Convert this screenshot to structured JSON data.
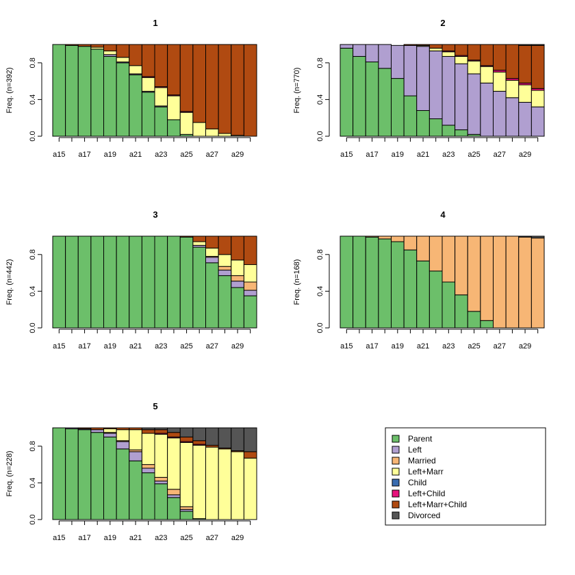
{
  "colors": {
    "Parent": "#6cbf6a",
    "Left": "#b09fd0",
    "Married": "#f7b675",
    "Left+Marr": "#ffff99",
    "Child": "#386cb0",
    "Left+Child": "#e7127c",
    "Left+Marr+Child": "#b04a11",
    "Divorced": "#555555"
  },
  "chart_data": [
    {
      "type": "bar",
      "stacked": true,
      "title": "1",
      "ylabel": "Freq. (n=392)",
      "categories": [
        "a15",
        "a16",
        "a17",
        "a18",
        "a19",
        "a20",
        "a21",
        "a22",
        "a23",
        "a24",
        "a25",
        "a26",
        "a27",
        "a28",
        "a29",
        "a30"
      ],
      "xtick_labels": [
        "a15",
        "a17",
        "a19",
        "a21",
        "a23",
        "a25",
        "a27",
        "a29"
      ],
      "ylim": [
        0,
        1
      ],
      "yticks": [
        "0.0",
        "0.4",
        "0.8"
      ],
      "series": [
        {
          "name": "Parent",
          "values": [
            1.0,
            0.99,
            0.98,
            0.95,
            0.87,
            0.8,
            0.67,
            0.48,
            0.32,
            0.18,
            0.02,
            0,
            0,
            0,
            0,
            0
          ]
        },
        {
          "name": "Left",
          "values": [
            0,
            0,
            0,
            0,
            0.02,
            0.01,
            0.01,
            0.01,
            0.01,
            0,
            0,
            0,
            0,
            0,
            0,
            0
          ]
        },
        {
          "name": "Married",
          "values": [
            0,
            0,
            0,
            0,
            0,
            0,
            0,
            0,
            0,
            0,
            0,
            0,
            0,
            0,
            0,
            0
          ]
        },
        {
          "name": "Left+Marr",
          "values": [
            0,
            0,
            0,
            0.02,
            0.04,
            0.05,
            0.09,
            0.15,
            0.2,
            0.26,
            0.24,
            0.15,
            0.08,
            0.03,
            0.01,
            0
          ]
        },
        {
          "name": "Child",
          "values": [
            0,
            0,
            0,
            0,
            0,
            0,
            0,
            0,
            0,
            0,
            0,
            0,
            0,
            0,
            0,
            0
          ]
        },
        {
          "name": "Left+Child",
          "values": [
            0,
            0,
            0,
            0,
            0,
            0,
            0,
            0.01,
            0.01,
            0.01,
            0.01,
            0,
            0,
            0,
            0,
            0
          ]
        },
        {
          "name": "Left+Marr+Child",
          "values": [
            0,
            0.01,
            0.02,
            0.03,
            0.07,
            0.14,
            0.23,
            0.35,
            0.46,
            0.55,
            0.73,
            0.85,
            0.92,
            0.97,
            0.99,
            1.0
          ]
        },
        {
          "name": "Divorced",
          "values": [
            0,
            0,
            0,
            0,
            0,
            0,
            0,
            0,
            0,
            0,
            0,
            0,
            0,
            0,
            0,
            0
          ]
        }
      ]
    },
    {
      "type": "bar",
      "stacked": true,
      "title": "2",
      "ylabel": "Freq. (n=770)",
      "categories": [
        "a15",
        "a16",
        "a17",
        "a18",
        "a19",
        "a20",
        "a21",
        "a22",
        "a23",
        "a24",
        "a25",
        "a26",
        "a27",
        "a28",
        "a29",
        "a30"
      ],
      "xtick_labels": [
        "a15",
        "a17",
        "a19",
        "a21",
        "a23",
        "a25",
        "a27",
        "a29"
      ],
      "ylim": [
        0,
        1
      ],
      "yticks": [
        "0.0",
        "0.4",
        "0.8"
      ],
      "series": [
        {
          "name": "Parent",
          "values": [
            0.96,
            0.87,
            0.81,
            0.74,
            0.63,
            0.44,
            0.28,
            0.19,
            0.12,
            0.07,
            0.02,
            0,
            0,
            0,
            0,
            0
          ]
        },
        {
          "name": "Left",
          "values": [
            0.04,
            0.13,
            0.19,
            0.26,
            0.36,
            0.55,
            0.7,
            0.74,
            0.75,
            0.72,
            0.66,
            0.58,
            0.49,
            0.42,
            0.37,
            0.32
          ]
        },
        {
          "name": "Married",
          "values": [
            0,
            0,
            0,
            0,
            0,
            0,
            0,
            0,
            0,
            0,
            0,
            0,
            0,
            0,
            0,
            0
          ]
        },
        {
          "name": "Left+Marr",
          "values": [
            0,
            0,
            0,
            0,
            0,
            0,
            0.01,
            0.03,
            0.05,
            0.08,
            0.14,
            0.18,
            0.21,
            0.19,
            0.19,
            0.18
          ]
        },
        {
          "name": "Child",
          "values": [
            0,
            0,
            0,
            0,
            0,
            0,
            0,
            0,
            0,
            0,
            0,
            0,
            0,
            0,
            0,
            0
          ]
        },
        {
          "name": "Left+Child",
          "values": [
            0,
            0,
            0,
            0,
            0,
            0,
            0,
            0,
            0.01,
            0.01,
            0.01,
            0.01,
            0.02,
            0.02,
            0.02,
            0.02
          ]
        },
        {
          "name": "Left+Marr+Child",
          "values": [
            0,
            0,
            0,
            0,
            0,
            0.01,
            0.01,
            0.04,
            0.07,
            0.12,
            0.17,
            0.23,
            0.28,
            0.37,
            0.41,
            0.47
          ]
        },
        {
          "name": "Divorced",
          "values": [
            0,
            0,
            0,
            0,
            0,
            0,
            0,
            0,
            0,
            0,
            0,
            0,
            0,
            0,
            0.01,
            0.01
          ]
        }
      ]
    },
    {
      "type": "bar",
      "stacked": true,
      "title": "3",
      "ylabel": "Freq. (n=442)",
      "categories": [
        "a15",
        "a16",
        "a17",
        "a18",
        "a19",
        "a20",
        "a21",
        "a22",
        "a23",
        "a24",
        "a25",
        "a26",
        "a27",
        "a28",
        "a29",
        "a30"
      ],
      "xtick_labels": [
        "a15",
        "a17",
        "a19",
        "a21",
        "a23",
        "a25",
        "a27",
        "a29"
      ],
      "ylim": [
        0,
        1
      ],
      "yticks": [
        "0.0",
        "0.4",
        "0.8"
      ],
      "series": [
        {
          "name": "Parent",
          "values": [
            1,
            1,
            1,
            1,
            1,
            1,
            1,
            1,
            1,
            1,
            0.99,
            0.88,
            0.71,
            0.57,
            0.44,
            0.35
          ]
        },
        {
          "name": "Left",
          "values": [
            0,
            0,
            0,
            0,
            0,
            0,
            0,
            0,
            0,
            0,
            0,
            0.02,
            0.06,
            0.06,
            0.07,
            0.06
          ]
        },
        {
          "name": "Married",
          "values": [
            0,
            0,
            0,
            0,
            0,
            0,
            0,
            0,
            0,
            0,
            0,
            0,
            0.01,
            0.04,
            0.06,
            0.09
          ]
        },
        {
          "name": "Left+Marr",
          "values": [
            0,
            0,
            0,
            0,
            0,
            0,
            0,
            0,
            0,
            0,
            0,
            0.04,
            0.09,
            0.13,
            0.17,
            0.19
          ]
        },
        {
          "name": "Child",
          "values": [
            0,
            0,
            0,
            0,
            0,
            0,
            0,
            0,
            0,
            0,
            0,
            0,
            0,
            0,
            0,
            0
          ]
        },
        {
          "name": "Left+Child",
          "values": [
            0,
            0,
            0,
            0,
            0,
            0,
            0,
            0,
            0,
            0,
            0,
            0,
            0,
            0,
            0,
            0
          ]
        },
        {
          "name": "Left+Marr+Child",
          "values": [
            0,
            0,
            0,
            0,
            0,
            0,
            0,
            0,
            0,
            0,
            0.01,
            0.06,
            0.13,
            0.2,
            0.26,
            0.31
          ]
        },
        {
          "name": "Divorced",
          "values": [
            0,
            0,
            0,
            0,
            0,
            0,
            0,
            0,
            0,
            0,
            0,
            0,
            0,
            0,
            0,
            0
          ]
        }
      ]
    },
    {
      "type": "bar",
      "stacked": true,
      "title": "4",
      "ylabel": "Freq. (n=168)",
      "categories": [
        "a15",
        "a16",
        "a17",
        "a18",
        "a19",
        "a20",
        "a21",
        "a22",
        "a23",
        "a24",
        "a25",
        "a26",
        "a27",
        "a28",
        "a29",
        "a30"
      ],
      "xtick_labels": [
        "a15",
        "a17",
        "a19",
        "a21",
        "a23",
        "a25",
        "a27",
        "a29"
      ],
      "ylim": [
        0,
        1
      ],
      "yticks": [
        "0.0",
        "0.4",
        "0.8"
      ],
      "series": [
        {
          "name": "Parent",
          "values": [
            1,
            1,
            0.99,
            0.97,
            0.94,
            0.85,
            0.73,
            0.62,
            0.5,
            0.36,
            0.18,
            0.08,
            0,
            0,
            0,
            0
          ]
        },
        {
          "name": "Left",
          "values": [
            0,
            0,
            0,
            0,
            0,
            0,
            0,
            0,
            0,
            0,
            0,
            0,
            0,
            0,
            0,
            0
          ]
        },
        {
          "name": "Married",
          "values": [
            0,
            0,
            0.01,
            0.03,
            0.06,
            0.15,
            0.27,
            0.38,
            0.5,
            0.64,
            0.82,
            0.92,
            1.0,
            1.0,
            0.99,
            0.98
          ]
        },
        {
          "name": "Left+Marr",
          "values": [
            0,
            0,
            0,
            0,
            0,
            0,
            0,
            0,
            0,
            0,
            0,
            0,
            0,
            0,
            0,
            0
          ]
        },
        {
          "name": "Child",
          "values": [
            0,
            0,
            0,
            0,
            0,
            0,
            0,
            0,
            0,
            0,
            0,
            0,
            0,
            0,
            0,
            0
          ]
        },
        {
          "name": "Left+Child",
          "values": [
            0,
            0,
            0,
            0,
            0,
            0,
            0,
            0,
            0,
            0,
            0,
            0,
            0,
            0,
            0,
            0
          ]
        },
        {
          "name": "Left+Marr+Child",
          "values": [
            0,
            0,
            0,
            0,
            0,
            0,
            0,
            0,
            0,
            0,
            0,
            0,
            0,
            0,
            0,
            0
          ]
        },
        {
          "name": "Divorced",
          "values": [
            0,
            0,
            0,
            0,
            0,
            0,
            0,
            0,
            0,
            0,
            0,
            0,
            0,
            0,
            0.01,
            0.02
          ]
        }
      ]
    },
    {
      "type": "bar",
      "stacked": true,
      "title": "5",
      "ylabel": "Freq. (n=228)",
      "categories": [
        "a15",
        "a16",
        "a17",
        "a18",
        "a19",
        "a20",
        "a21",
        "a22",
        "a23",
        "a24",
        "a25",
        "a26",
        "a27",
        "a28",
        "a29",
        "a30"
      ],
      "xtick_labels": [
        "a15",
        "a17",
        "a19",
        "a21",
        "a23",
        "a25",
        "a27",
        "a29"
      ],
      "ylim": [
        0,
        1
      ],
      "yticks": [
        "0.0",
        "0.4",
        "0.8"
      ],
      "series": [
        {
          "name": "Parent",
          "values": [
            1.0,
            0.99,
            0.98,
            0.95,
            0.9,
            0.77,
            0.64,
            0.51,
            0.39,
            0.24,
            0.09,
            0.01,
            0,
            0,
            0,
            0
          ]
        },
        {
          "name": "Left",
          "values": [
            0,
            0.01,
            0.01,
            0.03,
            0.04,
            0.08,
            0.1,
            0.05,
            0.03,
            0.03,
            0.02,
            0,
            0,
            0,
            0,
            0
          ]
        },
        {
          "name": "Married",
          "values": [
            0,
            0,
            0,
            0,
            0.01,
            0.01,
            0.02,
            0.04,
            0.04,
            0.06,
            0.03,
            0,
            0,
            0,
            0,
            0
          ]
        },
        {
          "name": "Left+Marr",
          "values": [
            0,
            0,
            0,
            0,
            0.04,
            0.12,
            0.22,
            0.34,
            0.47,
            0.56,
            0.7,
            0.8,
            0.79,
            0.77,
            0.74,
            0.67
          ]
        },
        {
          "name": "Child",
          "values": [
            0,
            0,
            0,
            0,
            0,
            0,
            0,
            0,
            0,
            0,
            0,
            0,
            0,
            0,
            0,
            0
          ]
        },
        {
          "name": "Left+Child",
          "values": [
            0,
            0,
            0,
            0,
            0,
            0,
            0,
            0,
            0.01,
            0.01,
            0.01,
            0.01,
            0,
            0,
            0,
            0
          ]
        },
        {
          "name": "Left+Marr+Child",
          "values": [
            0,
            0,
            0.01,
            0.02,
            0.01,
            0.02,
            0.02,
            0.04,
            0.04,
            0.05,
            0.05,
            0.04,
            0.02,
            0.01,
            0.01,
            0.07
          ]
        },
        {
          "name": "Divorced",
          "values": [
            0,
            0,
            0,
            0,
            0,
            0,
            0,
            0.02,
            0.02,
            0.05,
            0.1,
            0.14,
            0.19,
            0.22,
            0.25,
            0.26
          ]
        }
      ]
    }
  ],
  "legend": {
    "items": [
      "Parent",
      "Left",
      "Married",
      "Left+Marr",
      "Child",
      "Left+Child",
      "Left+Marr+Child",
      "Divorced"
    ]
  }
}
